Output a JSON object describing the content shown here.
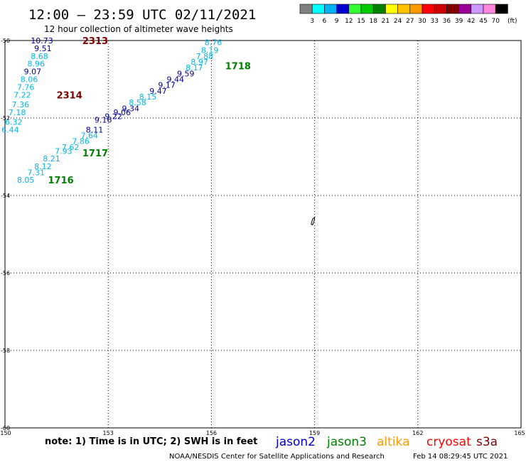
{
  "header": {
    "title": "12:00 – 23:59 UTC 02/11/2021",
    "subtitle": "12 hour collection of altimeter wave heights"
  },
  "legend": {
    "unit": "(ft)",
    "bins": [
      {
        "label": "3",
        "color": "#808080"
      },
      {
        "label": "6",
        "color": "#00ffff"
      },
      {
        "label": "9",
        "color": "#00b0f0"
      },
      {
        "label": "12",
        "color": "#0000cc"
      },
      {
        "label": "15",
        "color": "#33ff33"
      },
      {
        "label": "18",
        "color": "#00cc00"
      },
      {
        "label": "21",
        "color": "#008000"
      },
      {
        "label": "24",
        "color": "#ffff00"
      },
      {
        "label": "27",
        "color": "#ffc000"
      },
      {
        "label": "30",
        "color": "#ff9900"
      },
      {
        "label": "33",
        "color": "#ff0000"
      },
      {
        "label": "36",
        "color": "#cc0000"
      },
      {
        "label": "39",
        "color": "#800000"
      },
      {
        "label": "42",
        "color": "#990099"
      },
      {
        "label": "45",
        "color": "#cc99ff"
      },
      {
        "label": "70",
        "color": "#ff88dd"
      },
      {
        "label": "",
        "color": "#000000"
      }
    ]
  },
  "axes": {
    "lon_ticks": [
      "150",
      "153",
      "156",
      "159",
      "162",
      "165"
    ],
    "lat_ticks": [
      "-50",
      "-52",
      "-54",
      "-56",
      "-58",
      "-60"
    ]
  },
  "colors": {
    "cyan_light": "#00b8e6",
    "blue_dark": "#000099",
    "green": "#008000",
    "maroon": "#800000",
    "altika": "#ff9900",
    "cryosat": "#ff0000"
  },
  "tracks": [
    {
      "points": [
        {
          "lon": 150.75,
          "lat": -50.0,
          "swh": "10.73",
          "color": "#000099"
        },
        {
          "lon": 150.85,
          "lat": -50.2,
          "swh": "9.51",
          "color": "#000099"
        },
        {
          "lon": 150.75,
          "lat": -50.4,
          "swh": "8.68",
          "color": "#00b8e6"
        },
        {
          "lon": 150.65,
          "lat": -50.6,
          "swh": "8.96",
          "color": "#00b8e6"
        },
        {
          "lon": 150.55,
          "lat": -50.8,
          "swh": "9.07",
          "color": "#000099"
        },
        {
          "lon": 150.45,
          "lat": -51.0,
          "swh": "8.06",
          "color": "#00b8e6"
        },
        {
          "lon": 150.35,
          "lat": -51.2,
          "swh": "7.76",
          "color": "#00b8e6"
        },
        {
          "lon": 150.25,
          "lat": -51.4,
          "swh": "7.22",
          "color": "#00b8e6"
        },
        {
          "lon": 150.2,
          "lat": -51.65,
          "swh": "7.36",
          "color": "#00b8e6"
        },
        {
          "lon": 150.1,
          "lat": -51.85,
          "swh": "7.18",
          "color": "#00b8e6"
        },
        {
          "lon": 150.0,
          "lat": -52.1,
          "swh": "6.32",
          "color": "#00b8e6"
        },
        {
          "lon": 149.9,
          "lat": -52.3,
          "swh": "6.44",
          "color": "#00b8e6"
        }
      ],
      "labels": [
        {
          "lon": 152.25,
          "lat": -50.0,
          "text": "2313",
          "color": "#800000"
        },
        {
          "lon": 151.5,
          "lat": -51.4,
          "text": "2314",
          "color": "#800000"
        }
      ]
    },
    {
      "points": [
        {
          "lon": 155.8,
          "lat": -50.05,
          "swh": "8.76",
          "color": "#00b8e6"
        },
        {
          "lon": 155.7,
          "lat": -50.25,
          "swh": "8.19",
          "color": "#00b8e6"
        },
        {
          "lon": 155.55,
          "lat": -50.4,
          "swh": "7.88",
          "color": "#00b8e6"
        },
        {
          "lon": 155.4,
          "lat": -50.55,
          "swh": "8.97",
          "color": "#00b8e6"
        },
        {
          "lon": 155.25,
          "lat": -50.7,
          "swh": "8.17",
          "color": "#00b8e6"
        },
        {
          "lon": 155.0,
          "lat": -50.85,
          "swh": "9.59",
          "color": "#000099"
        },
        {
          "lon": 154.7,
          "lat": -51.0,
          "swh": "9.44",
          "color": "#000099"
        },
        {
          "lon": 154.45,
          "lat": -51.15,
          "swh": "9.17",
          "color": "#000099"
        },
        {
          "lon": 154.2,
          "lat": -51.3,
          "swh": "9.47",
          "color": "#000099"
        },
        {
          "lon": 153.9,
          "lat": -51.45,
          "swh": "8.15",
          "color": "#00b8e6"
        },
        {
          "lon": 153.6,
          "lat": -51.6,
          "swh": "8.58",
          "color": "#00b8e6"
        },
        {
          "lon": 153.4,
          "lat": -51.75,
          "swh": "9.34",
          "color": "#000099"
        },
        {
          "lon": 153.15,
          "lat": -51.85,
          "swh": "9.06",
          "color": "#000099"
        },
        {
          "lon": 152.9,
          "lat": -51.95,
          "swh": "9.22",
          "color": "#000099"
        },
        {
          "lon": 152.6,
          "lat": -52.05,
          "swh": "9.16",
          "color": "#000099"
        },
        {
          "lon": 152.35,
          "lat": -52.3,
          "swh": "8.11",
          "color": "#000099"
        },
        {
          "lon": 152.2,
          "lat": -52.45,
          "swh": "7.64",
          "color": "#00b8e6"
        },
        {
          "lon": 151.95,
          "lat": -52.6,
          "swh": "7.86",
          "color": "#00b8e6"
        },
        {
          "lon": 151.65,
          "lat": -52.75,
          "swh": "7.62",
          "color": "#00b8e6"
        },
        {
          "lon": 151.45,
          "lat": -52.85,
          "swh": "7.93",
          "color": "#00b8e6"
        },
        {
          "lon": 151.1,
          "lat": -53.05,
          "swh": "8.21",
          "color": "#00b8e6"
        },
        {
          "lon": 150.85,
          "lat": -53.25,
          "swh": "8.12",
          "color": "#00b8e6"
        },
        {
          "lon": 150.65,
          "lat": -53.4,
          "swh": "7.31",
          "color": "#00b8e6"
        },
        {
          "lon": 150.35,
          "lat": -53.6,
          "swh": "8.05",
          "color": "#00b8e6"
        }
      ],
      "labels": [
        {
          "lon": 156.4,
          "lat": -50.65,
          "text": "1718",
          "color": "#008000"
        },
        {
          "lon": 152.25,
          "lat": -52.9,
          "text": "1717",
          "color": "#008000"
        },
        {
          "lon": 151.25,
          "lat": -53.6,
          "text": "1716",
          "color": "#008000"
        }
      ]
    }
  ],
  "landmark": {
    "lon": 158.9,
    "lat": -54.65
  },
  "footer": {
    "note": "note:  1) Time is in UTC;  2) SWH is in feet",
    "satellites": [
      {
        "name": "jason2",
        "color": "#0000cc"
      },
      {
        "name": "jason3",
        "color": "#008000"
      },
      {
        "name": "altika",
        "color": "#ff9900"
      },
      {
        "name": "cryosat",
        "color": "#ff0000"
      },
      {
        "name": "s3a",
        "color": "#800000"
      }
    ],
    "credit": "NOAA/NESDIS Center for Satellite Applications and Research",
    "timestamp": "Feb 14 08:29:45 UTC 2021"
  }
}
